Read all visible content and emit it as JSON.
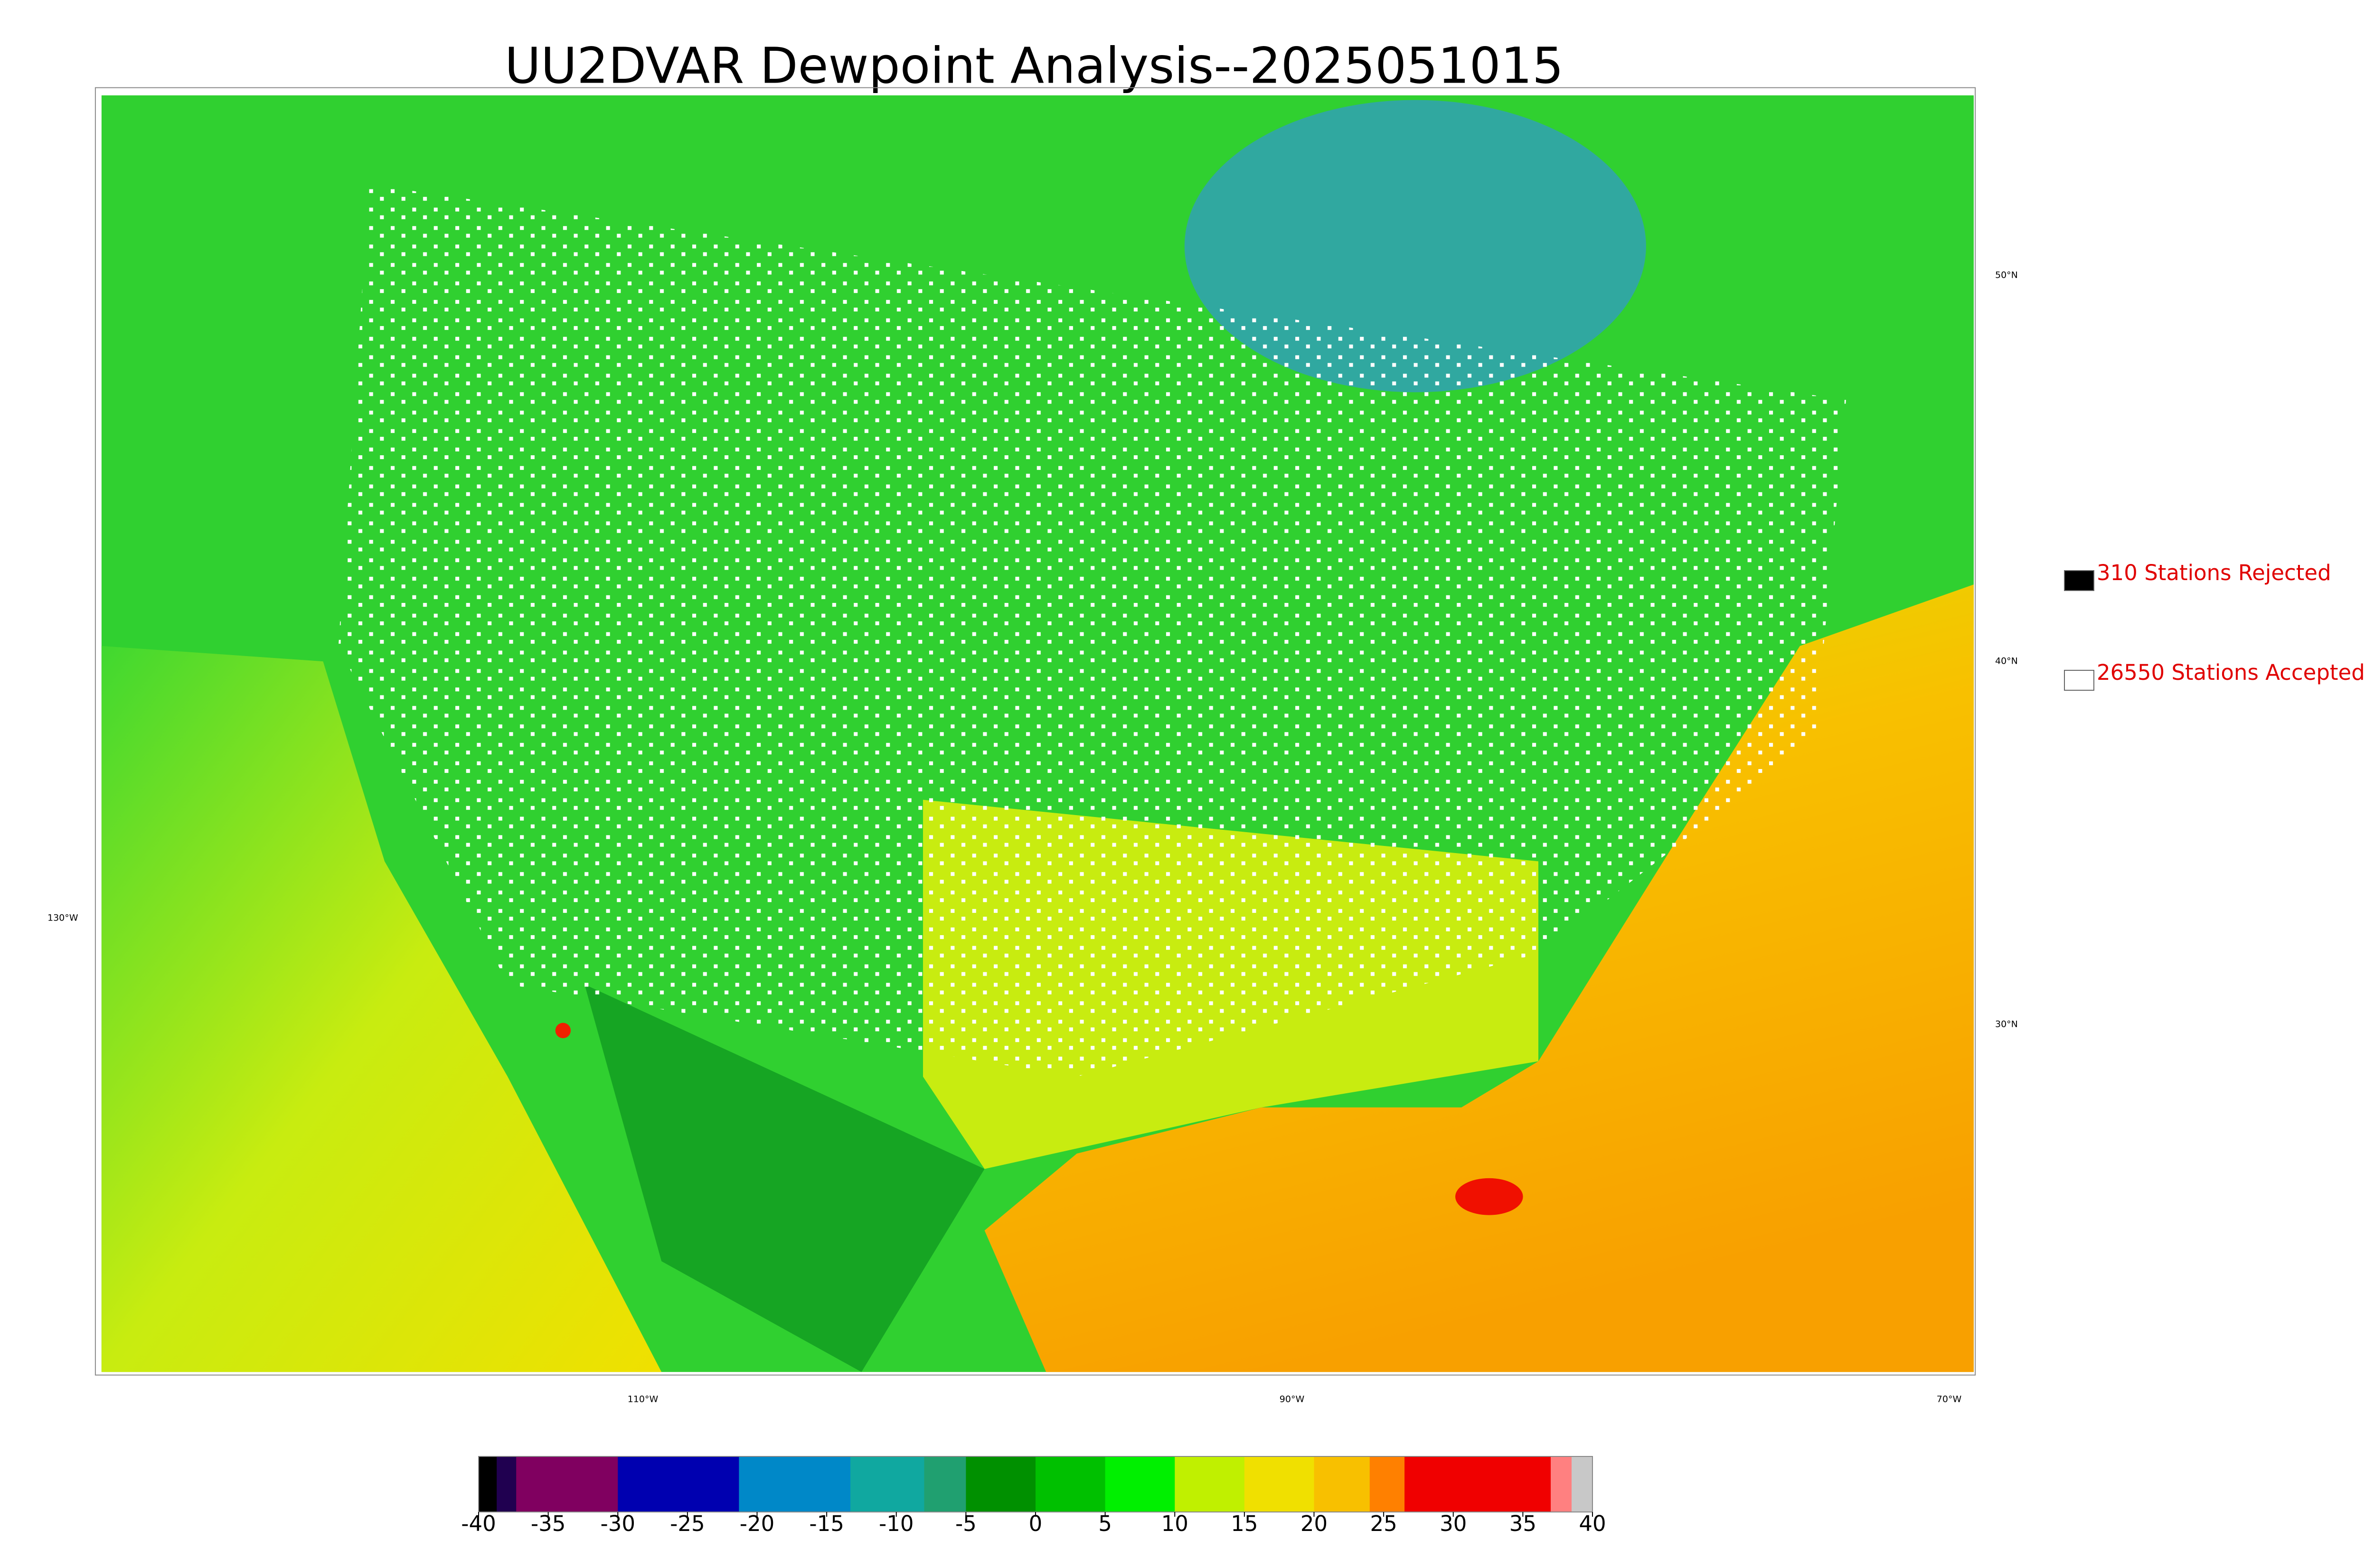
{
  "title": "UU2DVAR Dewpoint Analysis--2025051015",
  "legend": [
    {
      "label": "310 Stations Rejected",
      "color": "#000000"
    },
    {
      "label": "26550 Stations Accepted",
      "color": "#ffffff"
    }
  ],
  "latitude_labels": [
    "50°N",
    "40°N",
    "30°N"
  ],
  "longitude_labels": [
    "130°W",
    "110°W",
    "90°W",
    "70°W"
  ],
  "colorbar": {
    "range": [
      -40,
      40
    ],
    "ticks": [
      -40,
      -35,
      -30,
      -25,
      -20,
      -15,
      -10,
      -5,
      0,
      5,
      10,
      15,
      20,
      25,
      30,
      35,
      40
    ],
    "segments": [
      {
        "from": -40,
        "to": -38.7,
        "color": "#000000"
      },
      {
        "from": -38.7,
        "to": -37.3,
        "color": "#200050"
      },
      {
        "from": -37.3,
        "to": -30,
        "color": "#800060"
      },
      {
        "from": -30,
        "to": -21.3,
        "color": "#0000b0"
      },
      {
        "from": -21.3,
        "to": -13.3,
        "color": "#0088c8"
      },
      {
        "from": -13.3,
        "to": -8,
        "color": "#10a8a0"
      },
      {
        "from": -8,
        "to": -5,
        "color": "#20a070"
      },
      {
        "from": -5,
        "to": 0,
        "color": "#009000"
      },
      {
        "from": 0,
        "to": 5,
        "color": "#00c000"
      },
      {
        "from": 5,
        "to": 10,
        "color": "#00f000"
      },
      {
        "from": 10,
        "to": 15,
        "color": "#c0f000"
      },
      {
        "from": 15,
        "to": 20,
        "color": "#f0e000"
      },
      {
        "from": 20,
        "to": 24,
        "color": "#f8c000"
      },
      {
        "from": 24,
        "to": 26.5,
        "color": "#ff8000"
      },
      {
        "from": 26.5,
        "to": 37,
        "color": "#f00000"
      },
      {
        "from": 37,
        "to": 38.5,
        "color": "#ff8080"
      },
      {
        "from": 38.5,
        "to": 40,
        "color": "#c8c8c8"
      }
    ]
  }
}
